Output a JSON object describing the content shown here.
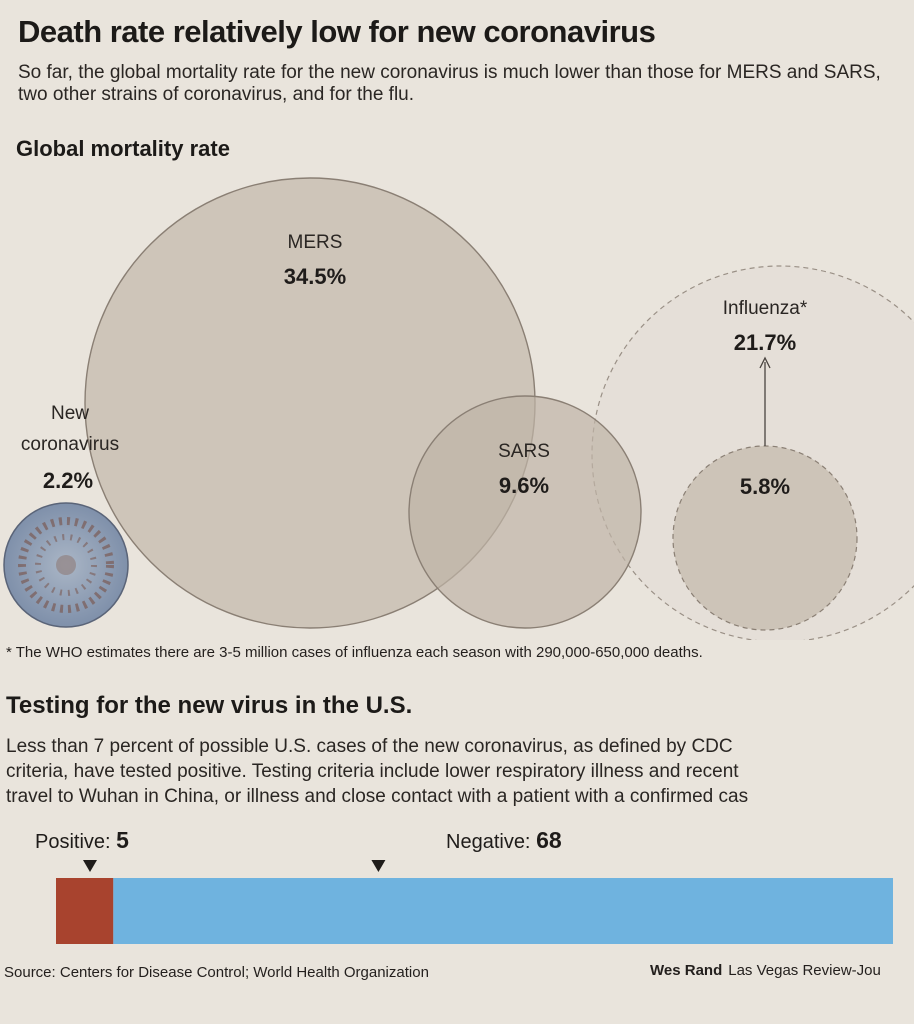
{
  "headline": "Death rate relatively low for new coronavirus",
  "dek": "So far, the global mortality rate for the new coronavirus is much lower than those for MERS and SARS, two other strains of coronavirus, and for the flu.",
  "chart_data": [
    {
      "type": "bubble",
      "title": "Global mortality rate",
      "items": [
        {
          "name": "MERS",
          "value_label": "34.5%",
          "value": 34.5
        },
        {
          "name": "SARS",
          "value_label": "9.6%",
          "value": 9.6
        },
        {
          "name": "New coronavirus",
          "value_label": "2.2%",
          "value": 2.2
        },
        {
          "name": "Influenza*",
          "value_label": "21.7%",
          "value": 21.7
        },
        {
          "name": "",
          "value_label": "5.8%",
          "value": 5.8
        }
      ],
      "colors": {
        "bubble_fill": "#c9bfb3",
        "bubble_stroke": "#8a7f74",
        "virus_fill": "#8fa0b8"
      }
    },
    {
      "type": "bar",
      "title": "Testing for the new virus in the U.S.",
      "stacked": true,
      "series": [
        {
          "name": "Positive:",
          "value": 5,
          "color": "#a8432e"
        },
        {
          "name": "Negative:",
          "value": 68,
          "color": "#6fb3df"
        }
      ]
    }
  ],
  "footnote": "* The WHO estimates there are 3-5 million cases of influenza each season with 290,000-650,000 deaths.",
  "section2": {
    "title": "Testing for the new virus in the U.S.",
    "body_lines": [
      "Less than 7 percent of possible U.S. cases of the new coronavirus, as defined by CDC",
      "criteria, have tested positive. Testing criteria include lower respiratory illness and recent",
      "travel to Wuhan in China, or illness and close contact with a patient with a confirmed cas"
    ]
  },
  "source": "Source: Centers for Disease Control; World Health Organization",
  "credit": {
    "author": "Wes Rand",
    "publication": "Las Vegas Review-Jou"
  }
}
